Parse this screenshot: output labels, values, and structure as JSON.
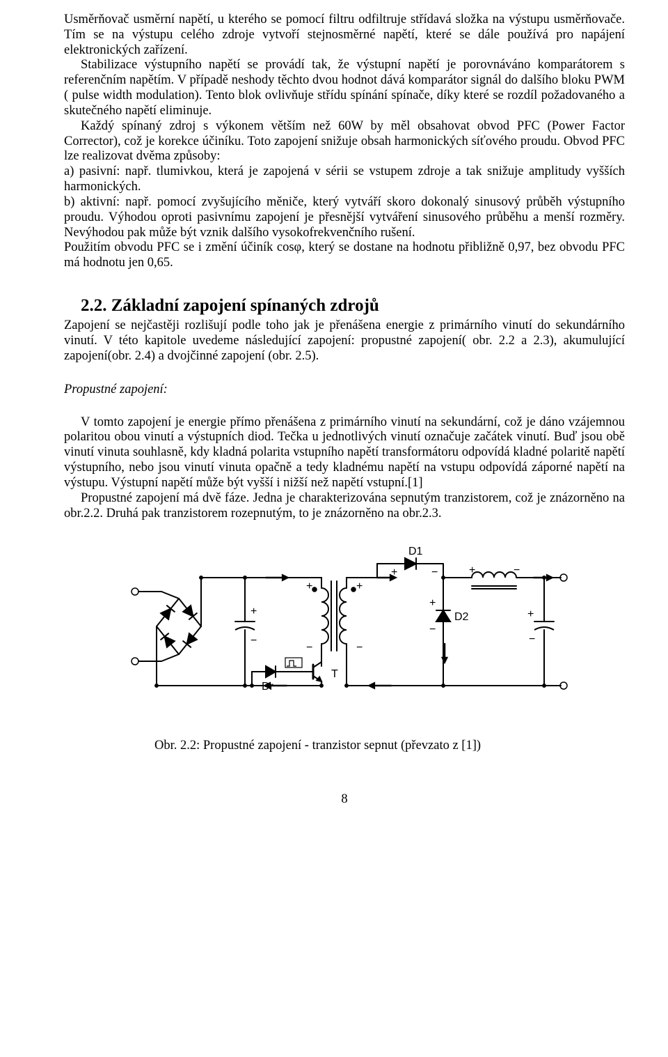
{
  "paragraphs": {
    "p1": "Usměrňovač usměrní napětí, u kterého se pomocí filtru odfiltruje střídavá složka na výstupu usměrňovače. Tím se na výstupu celého zdroje vytvoří stejnosměrné napětí, které se dále používá pro napájení elektronických zařízení.",
    "p2": "Stabilizace výstupního napětí se provádí tak, že výstupní napětí je porovnáváno komparátorem s referenčním napětím. V případě neshody těchto dvou hodnot dává komparátor signál do dalšího bloku PWM ( pulse width modulation). Tento blok ovlivňuje střídu spínání spínače, díky které se rozdíl požadovaného a skutečného napětí eliminuje.",
    "p3": "Každý spínaný zdroj s výkonem větším než 60W by měl obsahovat obvod PFC (Power Factor Corrector), což je korekce účiníku. Toto zapojení snižuje obsah harmonických síťového proudu. Obvod PFC lze realizovat dvěma způsoby:",
    "p4": "a) pasivní: např. tlumivkou, která je zapojená v sérii se vstupem zdroje a tak snižuje amplitudy vyšších harmonických.",
    "p5": "b) aktivní: např. pomocí zvyšujícího měniče, který vytváří skoro dokonalý sinusový průběh výstupního proudu. Výhodou oproti pasivnímu zapojení je přesnější vytváření sinusového průběhu a menší rozměry. Nevýhodou pak může být vznik dalšího vysokofrekvenčního rušení.",
    "p6": "Použitím obvodu PFC se i změní účiník cosφ, který se dostane na hodnotu přibližně 0,97, bez obvodu PFC má hodnotu jen 0,65.",
    "h22": "2.2. Základní zapojení spínaných zdrojů",
    "p7": "Zapojení se nejčastěji rozlišují podle toho jak je přenášena energie z primárního vinutí do sekundárního vinutí. V této kapitole uvedeme následující zapojení: propustné zapojení( obr. 2.2 a 2.3), akumulující zapojení(obr. 2.4) a dvojčinné zapojení (obr. 2.5).",
    "sub1": "Propustné zapojení:",
    "p8": "V tomto zapojení je energie přímo přenášena z primárního vinutí na sekundární, což je dáno vzájemnou polaritou obou vinutí a výstupních diod. Tečka u jednotlivých vinutí označuje začátek vinutí. Buď jsou obě vinutí vinuta souhlasně, kdy kladná polarita vstupního napětí transformátoru odpovídá kladné polaritě napětí výstupního, nebo jsou vinutí vinuta opačně a tedy kladnému napětí na vstupu odpovídá záporné napětí na výstupu. Výstupní napětí může být vyšší i nižší než napětí vstupní.[1]",
    "p9": "Propustné zapojení má dvě fáze. Jedna je charakterizována sepnutým tranzistorem, což je znázorněno na obr.2.2. Druhá pak tranzistorem rozepnutým, to je znázorněno na obr.2.3.",
    "caption": "Obr. 2.2: Propustné zapojení - tranzistor sepnut (převzato z [1])",
    "page_num": "8"
  },
  "figure": {
    "labels": {
      "D1": "D1",
      "D2": "D2",
      "T": "T",
      "Dr": "Dr"
    },
    "colors": {
      "stroke": "#000000",
      "thin": "#555555",
      "background": "#ffffff"
    },
    "stroke_width": 2,
    "font_family": "Arial, sans-serif",
    "font_size": 16
  }
}
